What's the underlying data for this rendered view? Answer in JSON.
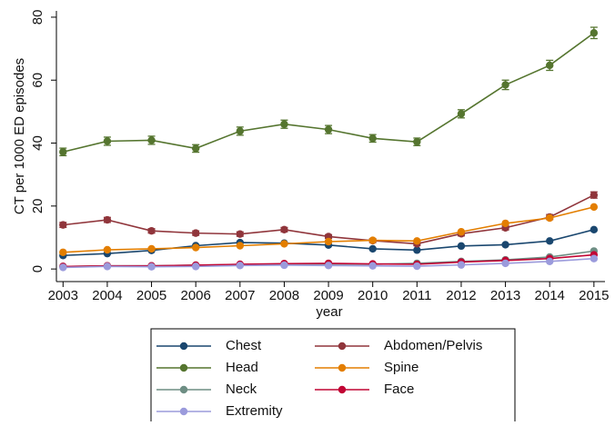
{
  "chart_data": {
    "type": "line",
    "x_label": "year",
    "y_label": "CT per 1000 ED episodes",
    "x": [
      2003,
      2004,
      2005,
      2006,
      2007,
      2008,
      2009,
      2010,
      2011,
      2012,
      2013,
      2014,
      2015
    ],
    "xlim": [
      2002.85,
      2015.25
    ],
    "xticks": [
      2003,
      2004,
      2005,
      2006,
      2007,
      2008,
      2009,
      2010,
      2011,
      2012,
      2013,
      2014,
      2015
    ],
    "ylim": [
      -4,
      82
    ],
    "yticks": [
      0,
      20,
      40,
      60,
      80
    ],
    "grid": false,
    "legend": "bottom",
    "series": [
      {
        "name": "Chest",
        "color": "#1a476f",
        "values": [
          4.3,
          4.9,
          5.9,
          7.4,
          8.4,
          8.2,
          7.6,
          6.4,
          6.0,
          7.3,
          7.7,
          8.9,
          12.5
        ]
      },
      {
        "name": "Abdomen/Pelvis",
        "color": "#90353b",
        "values": [
          14.0,
          15.6,
          12.1,
          11.4,
          11.1,
          12.5,
          10.3,
          9.0,
          8.0,
          11.2,
          13.1,
          16.5,
          23.5
        ],
        "errors": [
          0.8,
          0.8,
          0.7,
          0.7,
          0.7,
          0.7,
          0.6,
          0.6,
          0.6,
          0.7,
          0.7,
          0.8,
          1.0
        ]
      },
      {
        "name": "Head",
        "color": "#55752f",
        "values": [
          37.2,
          40.6,
          40.9,
          38.3,
          43.8,
          46.0,
          44.3,
          41.5,
          40.4,
          49.3,
          58.5,
          64.7,
          75.0
        ],
        "errors": [
          1.2,
          1.3,
          1.3,
          1.2,
          1.3,
          1.3,
          1.3,
          1.2,
          1.2,
          1.3,
          1.5,
          1.6,
          1.8
        ]
      },
      {
        "name": "Spine",
        "color": "#e37e00",
        "values": [
          5.3,
          6.1,
          6.4,
          6.8,
          7.4,
          8.0,
          8.7,
          9.1,
          8.9,
          11.8,
          14.5,
          16.2,
          19.7
        ]
      },
      {
        "name": "Neck",
        "color": "#6e8e84",
        "values": [
          0.8,
          1.0,
          1.0,
          1.2,
          1.4,
          1.6,
          1.6,
          1.5,
          1.8,
          2.4,
          2.9,
          3.8,
          5.7
        ]
      },
      {
        "name": "Face",
        "color": "#c10534",
        "values": [
          0.8,
          1.0,
          1.0,
          1.2,
          1.5,
          1.7,
          1.8,
          1.6,
          1.5,
          2.2,
          2.7,
          3.3,
          4.5
        ]
      },
      {
        "name": "Extremity",
        "color": "#9b9bdc",
        "values": [
          0.5,
          0.8,
          0.7,
          0.8,
          1.1,
          1.2,
          1.1,
          1.0,
          0.9,
          1.3,
          1.8,
          2.4,
          3.3
        ]
      }
    ]
  }
}
